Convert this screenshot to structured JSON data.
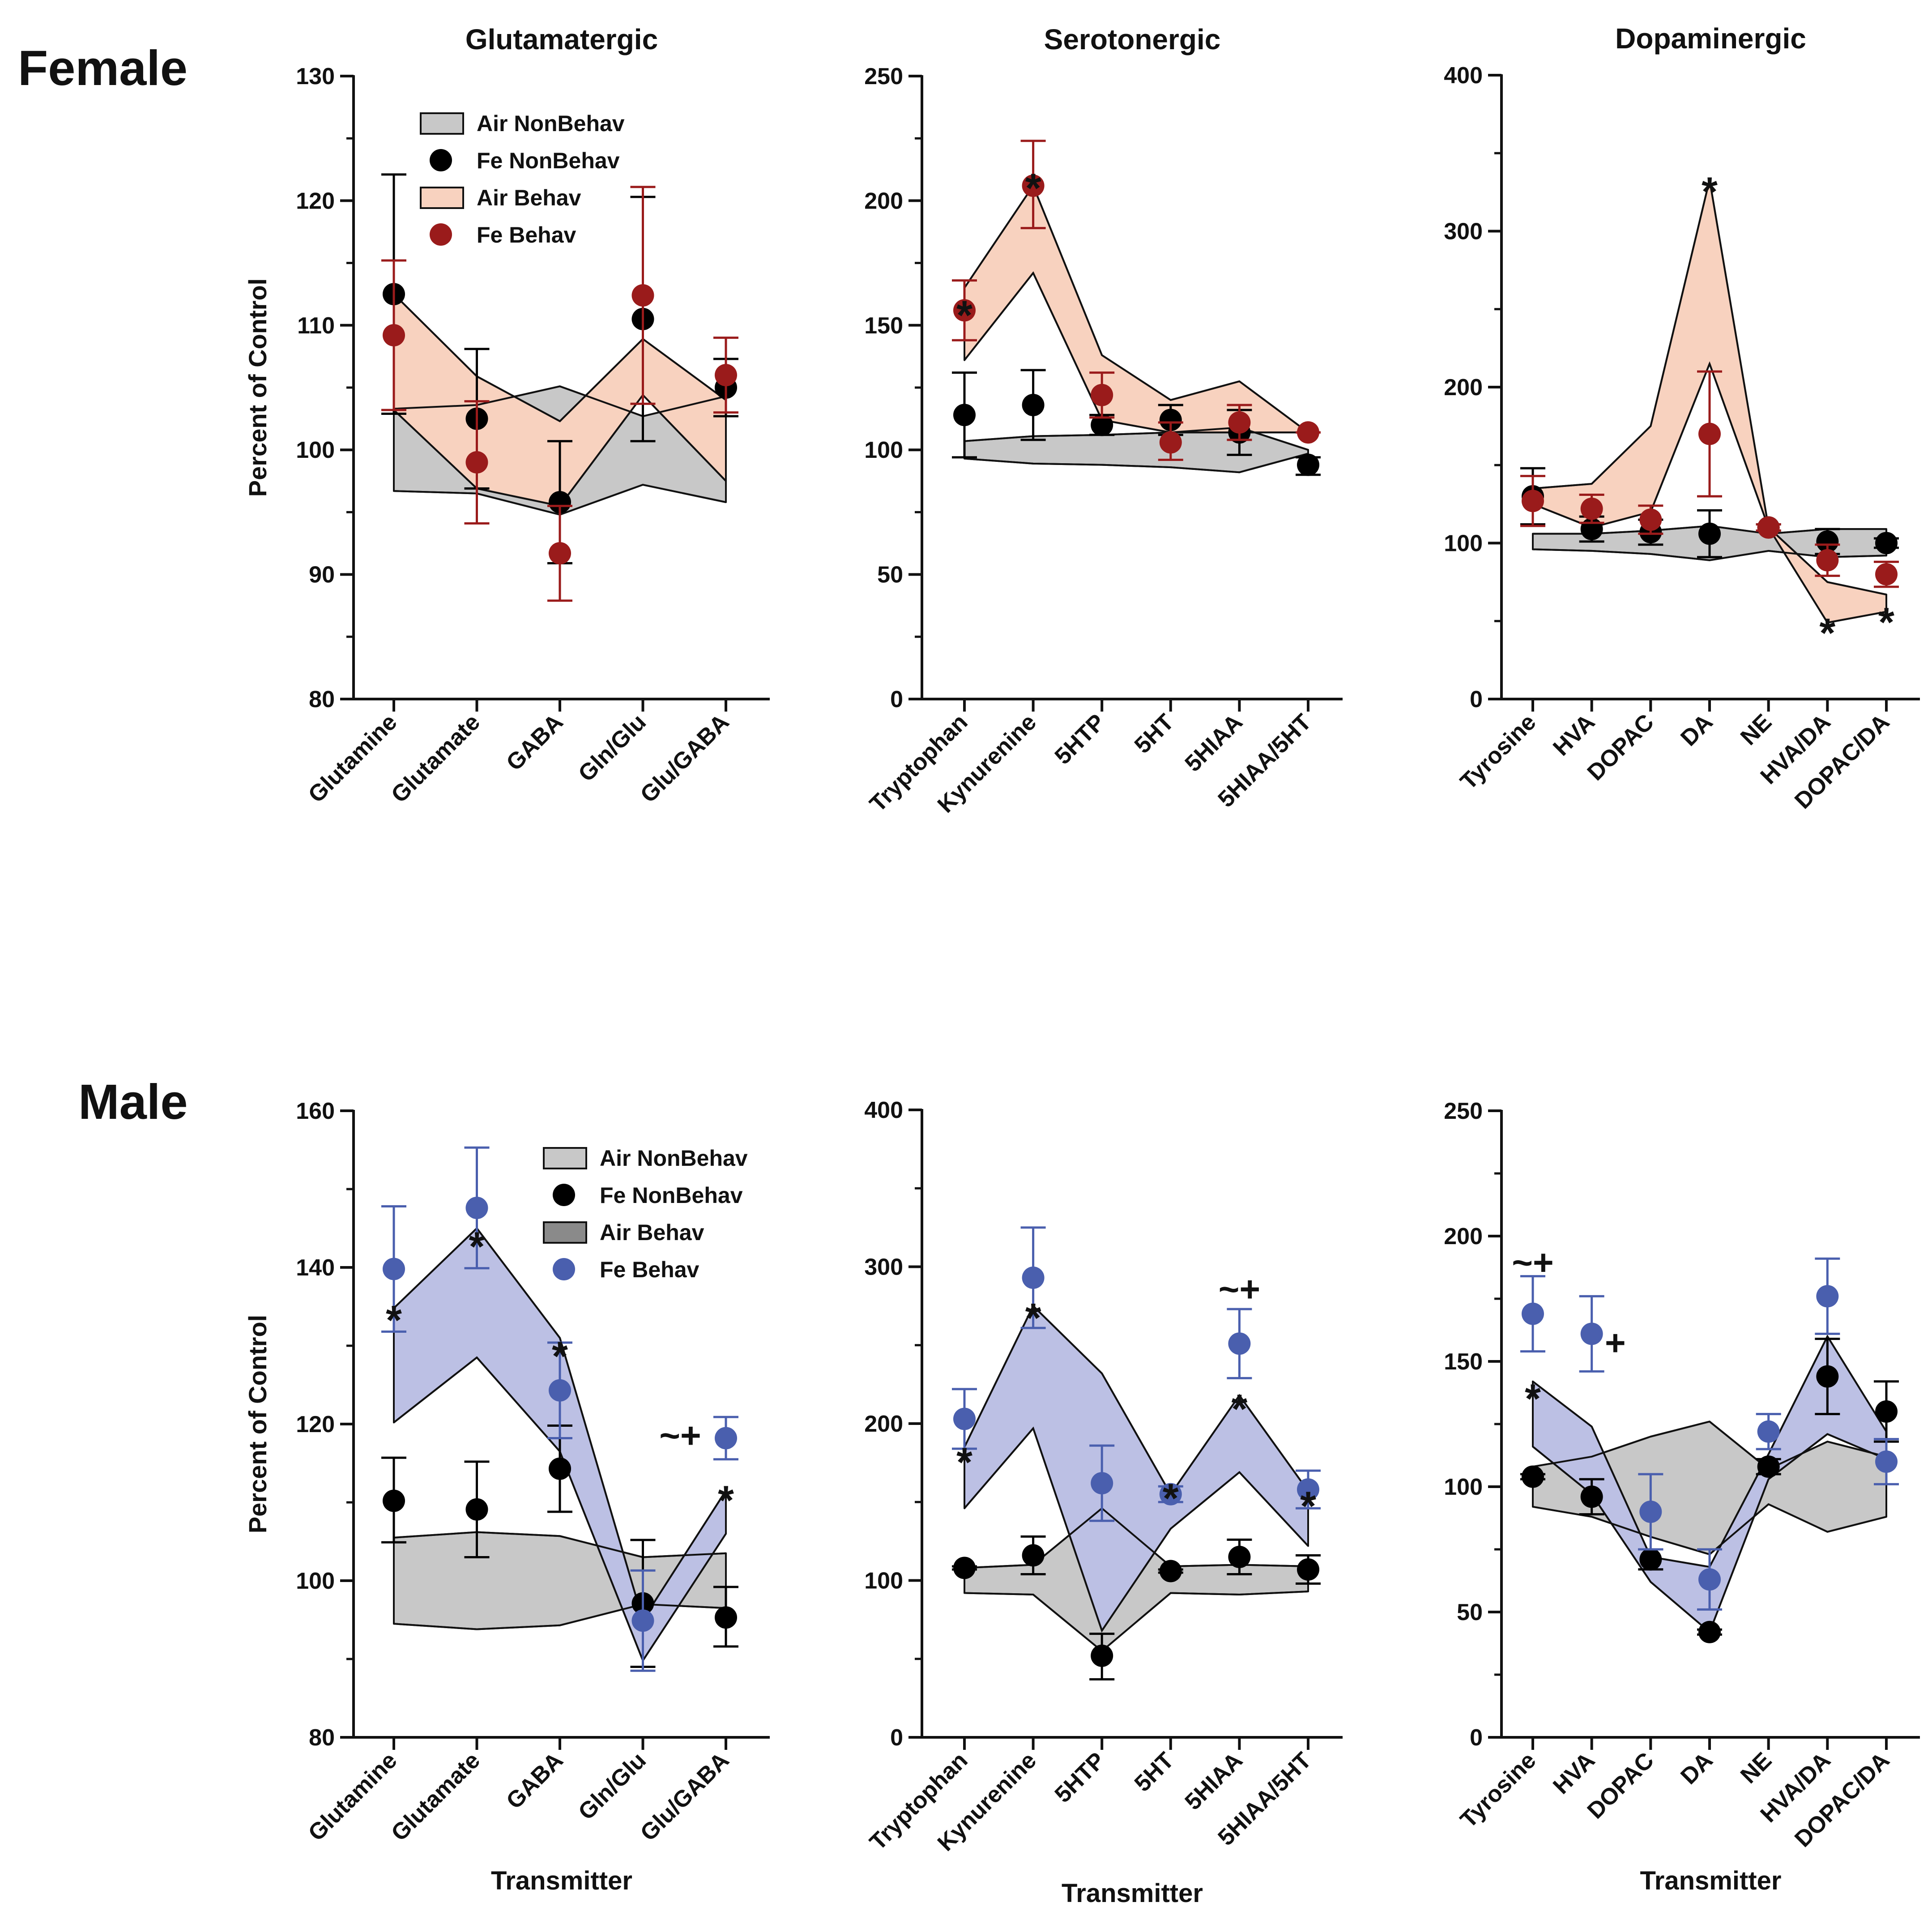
{
  "row_labels": {
    "female": "Female",
    "male": "Male"
  },
  "colors": {
    "air_nonbehav_fill": "#c8c8c8",
    "female_air_behav_fill": "#f8d2bf",
    "female_fe_behav": "#9a1b1b",
    "male_air_behav_fill": "#bcc0e4",
    "male_air_behav_legend": "#8a8a8a",
    "male_fe_behav": "#4a5fae",
    "fe_nonbehav": "#000000",
    "overlap_female": "#c9a392",
    "overlap_male": "#8f98c8"
  },
  "chart_data": [
    {
      "id": "female-glut",
      "type": "line",
      "title": "Glutamatergic",
      "ylabel": "Percent of Control",
      "xlabel": "",
      "ylim": [
        80,
        130
      ],
      "yticks": [
        80,
        90,
        100,
        110,
        120,
        130
      ],
      "categories": [
        "Glutamine",
        "Glutamate",
        "GABA",
        "Gln/Glu",
        "Glu/GABA"
      ],
      "legend": [
        "Air NonBehav",
        "Fe NonBehav",
        "Air Behav",
        "Fe Behav"
      ],
      "bands": [
        {
          "name": "Air NonBehav",
          "fill": "#c8c8c8",
          "upper": [
            103.3,
            103.6,
            105.1,
            102.7,
            104.3
          ],
          "lower": [
            96.7,
            96.5,
            94.8,
            97.2,
            95.8
          ]
        },
        {
          "name": "Air Behav",
          "fill": "#f8d2bf",
          "upper": [
            112.5,
            105.9,
            102.3,
            108.9,
            104.0
          ],
          "lower": [
            103.2,
            96.9,
            95.5,
            104.4,
            97.5
          ]
        }
      ],
      "series": [
        {
          "name": "Fe NonBehav",
          "color": "#000000",
          "values": [
            112.5,
            102.5,
            95.8,
            110.5,
            105.0
          ],
          "err_hi": [
            122.1,
            108.1,
            100.7,
            120.3,
            107.3
          ],
          "err_lo": [
            102.9,
            96.9,
            90.9,
            100.7,
            102.7
          ]
        },
        {
          "name": "Fe Behav",
          "color": "#9a1b1b",
          "values": [
            109.2,
            99.0,
            91.7,
            112.4,
            106.0
          ],
          "err_hi": [
            115.2,
            103.9,
            95.5,
            121.1,
            109.0
          ],
          "err_lo": [
            103.2,
            94.1,
            87.9,
            103.7,
            103.0
          ]
        }
      ],
      "annotations": []
    },
    {
      "id": "female-sero",
      "type": "line",
      "title": "Serotonergic",
      "ylabel": "",
      "xlabel": "",
      "ylim": [
        0,
        250
      ],
      "yticks": [
        0,
        50,
        100,
        150,
        200,
        250
      ],
      "categories": [
        "Tryptophan",
        "Kynurenine",
        "5HTP",
        "5HT",
        "5HIAA",
        "5HIAA/5HT"
      ],
      "legend": [],
      "bands": [
        {
          "name": "Air NonBehav",
          "fill": "#c8c8c8",
          "upper": [
            103.5,
            105.5,
            106.0,
            107.0,
            109.0,
            100.0
          ],
          "lower": [
            96.5,
            94.5,
            94.0,
            93.0,
            91.0,
            98.5
          ]
        },
        {
          "name": "Air Behav",
          "fill": "#f8d2bf",
          "upper": [
            165.0,
            206.0,
            138.0,
            120.0,
            127.5,
            107.0
          ],
          "lower": [
            136.0,
            171.0,
            112.0,
            107.0,
            107.0,
            107.0
          ]
        }
      ],
      "series": [
        {
          "name": "Fe NonBehav",
          "color": "#000000",
          "values": [
            114.0,
            118.0,
            110.0,
            112.0,
            107.0,
            94.0
          ],
          "err_hi": [
            131.0,
            132.0,
            114.0,
            118.0,
            116.0,
            97.0
          ],
          "err_lo": [
            97.0,
            104.0,
            106.0,
            106.0,
            98.0,
            90.0
          ]
        },
        {
          "name": "Fe Behav",
          "color": "#9a1b1b",
          "values": [
            156.0,
            206.0,
            122.0,
            103.0,
            111.0,
            107.0
          ],
          "err_hi": [
            168.0,
            224.0,
            131.0,
            111.0,
            118.0,
            107.0
          ],
          "err_lo": [
            144.0,
            189.0,
            113.0,
            96.0,
            104.0,
            107.0
          ]
        }
      ],
      "annotations": [
        {
          "text": "*",
          "cat": 0,
          "value": 157
        },
        {
          "text": "*",
          "cat": 1,
          "value": 208
        }
      ]
    },
    {
      "id": "female-dopa",
      "type": "line",
      "title": "Dopaminergic",
      "ylabel": "",
      "xlabel": "",
      "ylim": [
        0,
        400
      ],
      "yticks": [
        0,
        100,
        200,
        300,
        400
      ],
      "categories": [
        "Tyrosine",
        "HVA",
        "DOPAC",
        "DA",
        "NE",
        "HVA/DA",
        "DOPAC/DA"
      ],
      "legend": [],
      "bands": [
        {
          "name": "Air NonBehav",
          "fill": "#c8c8c8",
          "upper": [
            106.0,
            106.0,
            108.0,
            111.0,
            106.0,
            109.0,
            109.0
          ],
          "lower": [
            96.0,
            95.0,
            93.0,
            89.0,
            95.0,
            91.0,
            92.0
          ]
        },
        {
          "name": "Air Behav",
          "fill": "#f8d2bf",
          "upper": [
            135.0,
            138.0,
            175.0,
            333.0,
            110.0,
            75.0,
            67.0
          ],
          "lower": [
            125.0,
            110.0,
            120.0,
            215.0,
            110.0,
            49.0,
            56.0
          ]
        }
      ],
      "series": [
        {
          "name": "Fe NonBehav",
          "color": "#000000",
          "values": [
            130.0,
            109.0,
            107.0,
            106.0,
            110.0,
            101.0,
            100.0
          ],
          "err_hi": [
            148.0,
            117.0,
            115.0,
            121.0,
            112.0,
            109.0,
            103.0
          ],
          "err_lo": [
            112.0,
            101.0,
            99.0,
            91.0,
            108.0,
            93.0,
            97.0
          ]
        },
        {
          "name": "Fe Behav",
          "color": "#9a1b1b",
          "values": [
            127.0,
            122.0,
            115.0,
            170.0,
            110.0,
            89.0,
            80.0
          ],
          "err_hi": [
            143.0,
            131.0,
            124.0,
            210.0,
            112.0,
            99.0,
            88.0
          ],
          "err_lo": [
            111.0,
            113.0,
            106.0,
            130.0,
            108.0,
            79.0,
            72.0
          ]
        }
      ],
      "annotations": [
        {
          "text": "*",
          "cat": 3,
          "value": 330
        },
        {
          "text": "*",
          "cat": 5,
          "value": 47
        },
        {
          "text": "*",
          "cat": 6,
          "value": 54
        }
      ]
    },
    {
      "id": "male-glut",
      "type": "line",
      "title": "",
      "ylabel": "Percent of Control",
      "xlabel": "Transmitter",
      "ylim": [
        80,
        160
      ],
      "yticks": [
        80,
        100,
        120,
        140,
        160
      ],
      "categories": [
        "Glutamine",
        "Glutamate",
        "GABA",
        "Gln/Glu",
        "Glu/GABA"
      ],
      "legend": [
        "Air NonBehav",
        "Fe NonBehav",
        "Air Behav",
        "Fe Behav"
      ],
      "bands": [
        {
          "name": "Air NonBehav",
          "fill": "#c8c8c8",
          "upper": [
            105.5,
            106.2,
            105.7,
            103.0,
            103.5
          ],
          "lower": [
            94.5,
            93.8,
            94.3,
            97.0,
            96.5
          ]
        },
        {
          "name": "Air Behav",
          "fill": "#bcc0e4",
          "upper": [
            134.8,
            145.0,
            131.0,
            95.0,
            111.5
          ],
          "lower": [
            120.2,
            128.5,
            116.5,
            89.8,
            106.0
          ]
        }
      ],
      "series": [
        {
          "name": "Fe NonBehav",
          "color": "#000000",
          "values": [
            110.2,
            109.1,
            114.3,
            97.1,
            95.3
          ],
          "err_hi": [
            115.7,
            115.2,
            119.8,
            105.2,
            99.2
          ],
          "err_lo": [
            104.9,
            103.0,
            108.8,
            89.0,
            91.6
          ]
        },
        {
          "name": "Fe Behav",
          "color": "#4a5fae",
          "values": [
            139.8,
            147.6,
            124.3,
            94.9,
            118.2
          ],
          "err_hi": [
            147.8,
            155.3,
            130.4,
            101.3,
            120.9
          ],
          "err_lo": [
            131.8,
            139.9,
            118.2,
            88.5,
            115.5
          ]
        }
      ],
      "annotations": [
        {
          "text": "*",
          "cat": 0,
          "value": 134.2
        },
        {
          "text": "*",
          "cat": 1,
          "value": 143.6
        },
        {
          "text": "*",
          "cat": 2,
          "value": 129.6
        },
        {
          "text": "~+",
          "cat": 4,
          "value": 118.4,
          "dx": -0.55
        },
        {
          "text": "*",
          "cat": 4,
          "value": 111.2
        }
      ]
    },
    {
      "id": "male-sero",
      "type": "line",
      "title": "",
      "ylabel": "",
      "xlabel": "Transmitter",
      "ylim": [
        0,
        400
      ],
      "yticks": [
        0,
        100,
        200,
        300,
        400
      ],
      "categories": [
        "Tryptophan",
        "Kynurenine",
        "5HTP",
        "5HT",
        "5HIAA",
        "5HIAA/5HT"
      ],
      "legend": [],
      "bands": [
        {
          "name": "Air NonBehav",
          "fill": "#c8c8c8",
          "upper": [
            108.0,
            110.0,
            146.0,
            109.0,
            110.0,
            109.0
          ],
          "lower": [
            92.0,
            91.0,
            55.0,
            92.0,
            91.0,
            93.0
          ]
        },
        {
          "name": "Air Behav",
          "fill": "#bcc0e4",
          "upper": [
            185.0,
            275.0,
            232.0,
            155.0,
            218.0,
            157.0
          ],
          "lower": [
            146.0,
            197.0,
            68.0,
            133.0,
            169.0,
            122.0
          ]
        }
      ],
      "series": [
        {
          "name": "Fe NonBehav",
          "color": "#000000",
          "values": [
            108.0,
            116.0,
            52.0,
            106.0,
            115.0,
            107.0
          ],
          "err_hi": [
            109.0,
            128.0,
            66.0,
            107.0,
            126.0,
            116.0
          ],
          "err_lo": [
            107.0,
            104.0,
            37.0,
            105.0,
            104.0,
            98.0
          ]
        },
        {
          "name": "Fe Behav",
          "color": "#4a5fae",
          "values": [
            203.0,
            293.0,
            162.0,
            155.0,
            251.0,
            158.0
          ],
          "err_hi": [
            222.0,
            325.0,
            186.0,
            160.0,
            273.0,
            170.0
          ],
          "err_lo": [
            184.0,
            261.0,
            138.0,
            150.0,
            229.0,
            146.0
          ]
        }
      ],
      "annotations": [
        {
          "text": "*",
          "cat": 0,
          "value": 180
        },
        {
          "text": "*",
          "cat": 1,
          "value": 272
        },
        {
          "text": "*",
          "cat": 3,
          "value": 157
        },
        {
          "text": "~+",
          "cat": 4,
          "value": 285
        },
        {
          "text": "*",
          "cat": 4,
          "value": 214
        },
        {
          "text": "*",
          "cat": 5,
          "value": 152
        }
      ]
    },
    {
      "id": "male-dopa",
      "type": "line",
      "title": "",
      "ylabel": "",
      "xlabel": "Transmitter",
      "ylim": [
        0,
        250
      ],
      "yticks": [
        0,
        50,
        100,
        150,
        200,
        250
      ],
      "categories": [
        "Tyrosine",
        "HVA",
        "DOPAC",
        "DA",
        "NE",
        "HVA/DA",
        "DOPAC/DA"
      ],
      "legend": [],
      "bands": [
        {
          "name": "Air NonBehav",
          "fill": "#c8c8c8",
          "upper": [
            108.0,
            112.0,
            120.0,
            126.0,
            107.0,
            118.0,
            112.0
          ],
          "lower": [
            92.0,
            88.0,
            80.0,
            73.0,
            93.0,
            82.0,
            88.0
          ]
        },
        {
          "name": "Air Behav",
          "fill": "#bcc0e4",
          "upper": [
            142.0,
            124.0,
            72.0,
            68.0,
            113.0,
            160.0,
            122.0
          ],
          "lower": [
            116.0,
            97.0,
            62.0,
            42.0,
            103.0,
            121.0,
            111.0
          ]
        }
      ],
      "series": [
        {
          "name": "Fe NonBehav",
          "color": "#000000",
          "values": [
            104.0,
            96.0,
            71.0,
            42.0,
            108.0,
            144.0,
            130.0
          ],
          "err_hi": [
            105.0,
            103.0,
            75.0,
            43.0,
            111.0,
            159.0,
            142.0
          ],
          "err_lo": [
            103.0,
            89.0,
            67.0,
            41.0,
            105.0,
            129.0,
            118.0
          ]
        },
        {
          "name": "Fe Behav",
          "color": "#4a5fae",
          "values": [
            169.0,
            161.0,
            90.0,
            63.0,
            122.0,
            176.0,
            110.0
          ],
          "err_hi": [
            184.0,
            176.0,
            105.0,
            75.0,
            129.0,
            191.0,
            119.0
          ],
          "err_lo": [
            154.0,
            146.0,
            75.0,
            51.0,
            115.0,
            161.0,
            101.0
          ]
        }
      ],
      "annotations": [
        {
          "text": "~+",
          "cat": 0,
          "value": 189
        },
        {
          "text": "*",
          "cat": 0,
          "value": 138
        },
        {
          "text": "+",
          "cat": 1,
          "value": 157,
          "dx": 0.4
        }
      ]
    }
  ]
}
